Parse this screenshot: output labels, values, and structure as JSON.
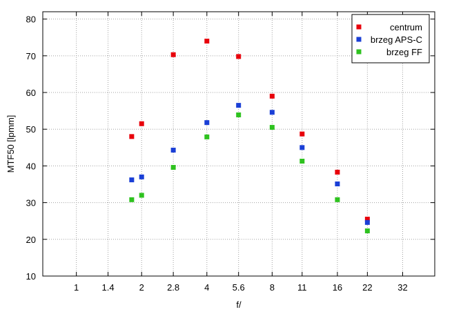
{
  "chart_data": {
    "type": "scatter",
    "xlabel": "f/",
    "ylabel": "MTF50 [lpmm]",
    "x_scale": "log2",
    "x_ticks": [
      1,
      1.4,
      2,
      2.8,
      4,
      5.6,
      8,
      11,
      16,
      22,
      32
    ],
    "x_tick_labels": [
      "1",
      "1.4",
      "2",
      "2.8",
      "4",
      "5.6",
      "8",
      "11",
      "16",
      "22",
      "32"
    ],
    "xlim": [
      0.7,
      45
    ],
    "ylim": [
      10,
      82
    ],
    "y_ticks": [
      10,
      20,
      30,
      40,
      50,
      60,
      70,
      80
    ],
    "grid": true,
    "legend_position": "top-right",
    "series": [
      {
        "name": "centrum",
        "color": "#e8000b",
        "points": [
          [
            1.8,
            48
          ],
          [
            2,
            51.5
          ],
          [
            2.8,
            70.3
          ],
          [
            4,
            74
          ],
          [
            5.6,
            69.8
          ],
          [
            8,
            59
          ],
          [
            11,
            48.7
          ],
          [
            16,
            38.3
          ],
          [
            22,
            25.5
          ]
        ]
      },
      {
        "name": "brzeg APS-C",
        "color": "#1a3fd6",
        "points": [
          [
            1.8,
            36.2
          ],
          [
            2,
            37
          ],
          [
            2.8,
            44.3
          ],
          [
            4,
            51.8
          ],
          [
            5.6,
            56.5
          ],
          [
            8,
            54.6
          ],
          [
            11,
            45
          ],
          [
            16,
            35.1
          ],
          [
            22,
            24.6
          ]
        ]
      },
      {
        "name": "brzeg FF",
        "color": "#2ec21f",
        "points": [
          [
            1.8,
            30.8
          ],
          [
            2,
            32
          ],
          [
            2.8,
            39.6
          ],
          [
            4,
            47.9
          ],
          [
            5.6,
            53.9
          ],
          [
            8,
            50.5
          ],
          [
            11,
            41.3
          ],
          [
            16,
            30.8
          ],
          [
            22,
            22.3
          ]
        ]
      }
    ]
  }
}
